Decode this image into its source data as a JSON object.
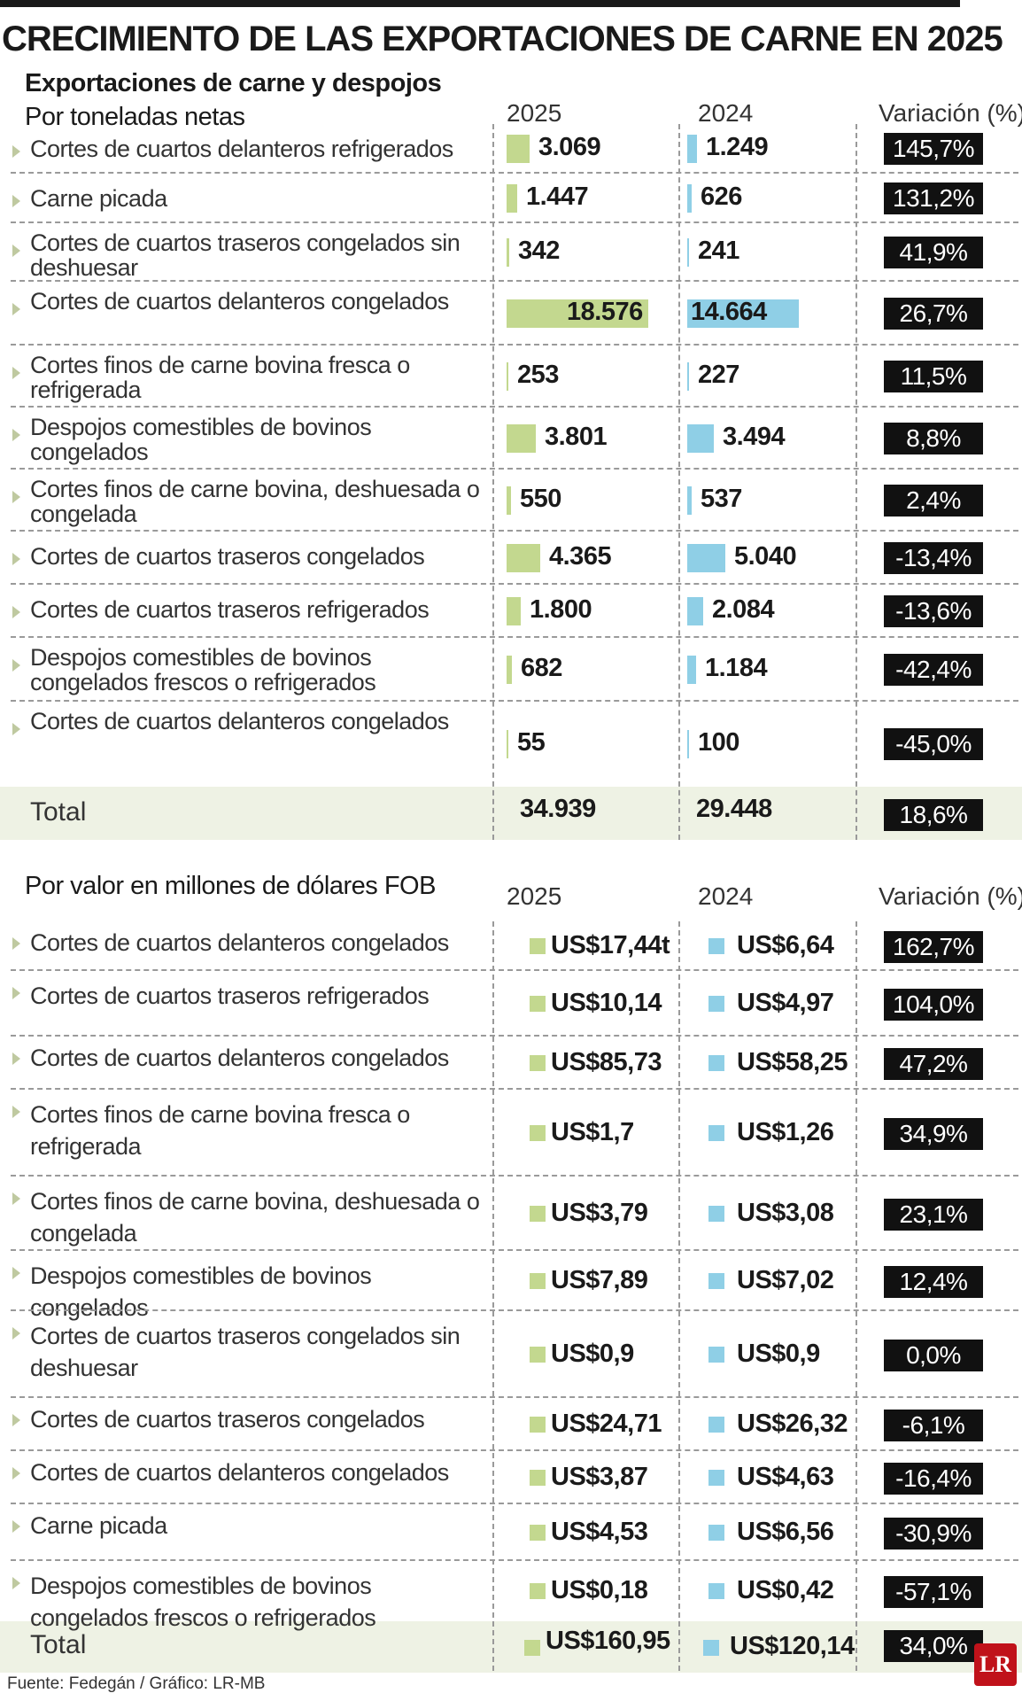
{
  "title": "CRECIMIENTO DE LAS EXPORTACIONES DE CARNE EN 2025",
  "section1": {
    "subtitle1": "Exportaciones de carne y despojos",
    "subtitle2": "Por toneladas netas",
    "col_2025": "2025",
    "col_2024": "2024",
    "col_var": "Variación (%)",
    "total_label": "Total",
    "total_2025": "34.939",
    "total_2024": "29.448",
    "total_var": "18,6%"
  },
  "section2": {
    "subtitle": "Por valor en millones de dólares FOB",
    "col_2025": "2025",
    "col_2024": "2024",
    "col_var": "Variación (%)",
    "total_label": "Total",
    "total_2025": "US$160,95",
    "total_2024": "US$120,14",
    "total_var": "34,0%"
  },
  "footer": "Fuente: Fedegán / Gráfico: LR-MB",
  "logo": "LR",
  "colors": {
    "bar_2025": "#c3d88f",
    "bar_2024": "#8fcfe6",
    "badge": "#111111"
  },
  "chart_data": [
    {
      "type": "bar",
      "title": "Por toneladas netas",
      "categories": [
        "Cortes de cuartos delanteros refrigerados",
        "Carne picada",
        "Cortes de cuartos traseros congelados sin deshuesar",
        "Cortes de cuartos delanteros congelados",
        "Cortes finos de carne bovina fresca o refrigerada",
        "Despojos comestibles de bovinos congelados",
        "Cortes finos de carne bovina, deshuesada o congelada",
        "Cortes de cuartos traseros congelados",
        "Cortes de cuartos traseros refrigerados",
        "Despojos comestibles de bovinos congelados frescos o refrigerados",
        "Cortes de cuartos delanteros congelados"
      ],
      "series": [
        {
          "name": "2025",
          "values": [
            3069,
            1447,
            342,
            18576,
            253,
            3801,
            550,
            4365,
            1800,
            682,
            55
          ],
          "labels": [
            "3.069",
            "1.447",
            "342",
            "18.576",
            "253",
            "3.801",
            "550",
            "4.365",
            "1.800",
            "682",
            "55"
          ]
        },
        {
          "name": "2024",
          "values": [
            1249,
            626,
            241,
            14664,
            227,
            3494,
            537,
            5040,
            2084,
            1184,
            100
          ],
          "labels": [
            "1.249",
            "626",
            "241",
            "14.664",
            "227",
            "3.494",
            "537",
            "5.040",
            "2.084",
            "1.184",
            "100"
          ]
        }
      ],
      "variation": [
        "145,7%",
        "131,2%",
        "41,9%",
        "26,7%",
        "11,5%",
        "8,8%",
        "2,4%",
        "-13,4%",
        "-13,6%",
        "-42,4%",
        "-45,0%"
      ]
    },
    {
      "type": "table",
      "title": "Por valor en millones de dólares FOB",
      "categories": [
        "Cortes de cuartos delanteros congelados",
        "Cortes de cuartos traseros refrigerados",
        "Cortes de cuartos delanteros congelados",
        "Cortes finos de carne bovina fresca o refrigerada",
        "Cortes finos de carne bovina, deshuesada o congelada",
        "Despojos comestibles de bovinos congelados",
        "Cortes de cuartos traseros congelados sin deshuesar",
        "Cortes de cuartos traseros congelados",
        "Cortes de cuartos delanteros congelados",
        "Carne picada",
        "Despojos comestibles de bovinos congelados frescos o refrigerados"
      ],
      "series": [
        {
          "name": "2025",
          "labels": [
            "US$17,44t",
            "US$10,14",
            "US$85,73",
            "US$1,7",
            "US$3,79",
            "US$7,89",
            "US$0,9",
            "US$24,71",
            "US$3,87",
            "US$4,53",
            "US$0,18"
          ]
        },
        {
          "name": "2024",
          "labels": [
            "US$6,64",
            "US$4,97",
            "US$58,25",
            "US$1,26",
            "US$3,08",
            "US$7,02",
            "US$0,9",
            "US$26,32",
            "US$4,63",
            "US$6,56",
            "US$0,42"
          ]
        }
      ],
      "variation": [
        "162,7%",
        "104,0%",
        "47,2%",
        "34,9%",
        "23,1%",
        "12,4%",
        "0,0%",
        "-6,1%",
        "-16,4%",
        "-30,9%",
        "-57,1%"
      ]
    }
  ]
}
